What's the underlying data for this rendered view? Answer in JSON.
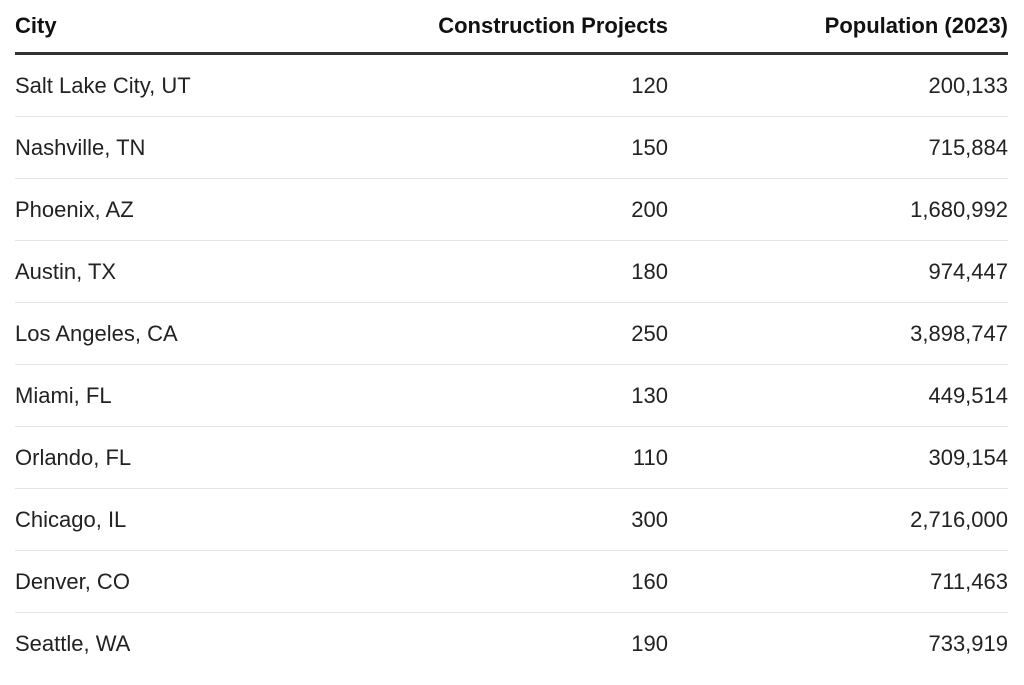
{
  "chart_data": {
    "type": "table",
    "columns": [
      "City",
      "Construction Projects",
      "Population (2023)"
    ],
    "rows": [
      {
        "city": "Salt Lake City, UT",
        "projects": "120",
        "population": "200,133"
      },
      {
        "city": "Nashville, TN",
        "projects": "150",
        "population": "715,884"
      },
      {
        "city": "Phoenix, AZ",
        "projects": "200",
        "population": "1,680,992"
      },
      {
        "city": "Austin, TX",
        "projects": "180",
        "population": "974,447"
      },
      {
        "city": "Los Angeles, CA",
        "projects": "250",
        "population": "3,898,747"
      },
      {
        "city": "Miami, FL",
        "projects": "130",
        "population": "449,514"
      },
      {
        "city": "Orlando, FL",
        "projects": "110",
        "population": "309,154"
      },
      {
        "city": "Chicago, IL",
        "projects": "300",
        "population": "2,716,000"
      },
      {
        "city": "Denver, CO",
        "projects": "160",
        "population": "711,463"
      },
      {
        "city": "Seattle, WA",
        "projects": "190",
        "population": "733,919"
      }
    ]
  }
}
